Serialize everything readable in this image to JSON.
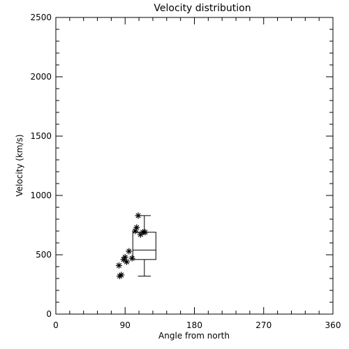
{
  "chart_data": {
    "type": "scatter",
    "title": "Velocity distribution",
    "xlabel": "Angle from north",
    "ylabel": "Velocity (km/s)",
    "xlim": [
      0,
      360
    ],
    "ylim": [
      0,
      2500
    ],
    "xticks": [
      0,
      90,
      180,
      270,
      360
    ],
    "yticks": [
      0,
      500,
      1000,
      1500,
      2000,
      2500
    ],
    "points": [
      {
        "x": 83,
        "y": 320
      },
      {
        "x": 85,
        "y": 330
      },
      {
        "x": 82,
        "y": 410
      },
      {
        "x": 88,
        "y": 460
      },
      {
        "x": 90,
        "y": 480
      },
      {
        "x": 92,
        "y": 440
      },
      {
        "x": 95,
        "y": 530
      },
      {
        "x": 99,
        "y": 470
      },
      {
        "x": 103,
        "y": 700
      },
      {
        "x": 105,
        "y": 730
      },
      {
        "x": 107,
        "y": 830
      },
      {
        "x": 110,
        "y": 670
      },
      {
        "x": 113,
        "y": 690
      },
      {
        "x": 116,
        "y": 690
      }
    ],
    "boxplot": {
      "x_left": 100,
      "x_right": 130,
      "whisker_low": 320,
      "q1": 460,
      "median": 540,
      "q3": 690,
      "whisker_high": 830
    },
    "grid": false
  }
}
